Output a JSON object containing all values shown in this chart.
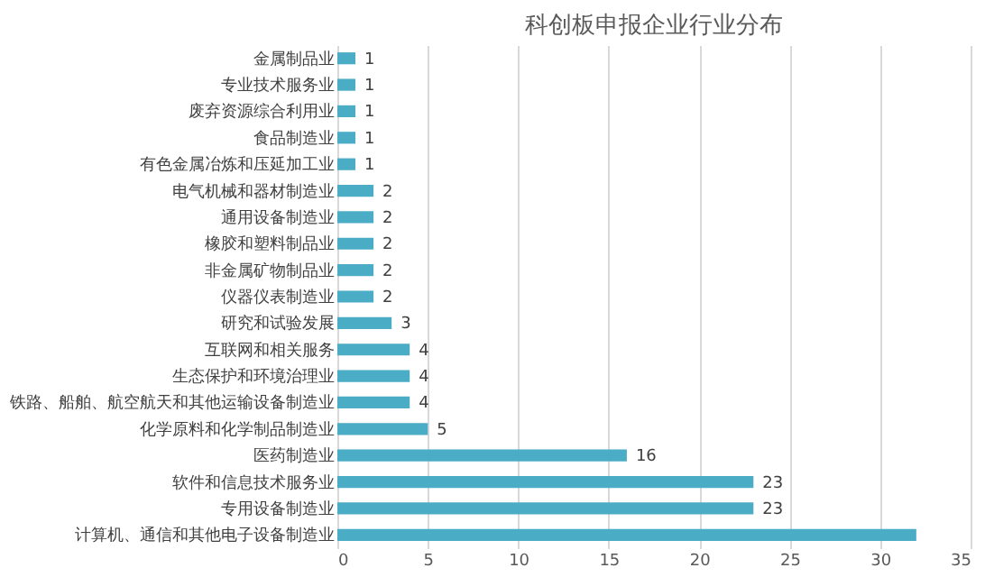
{
  "chart_data": {
    "type": "bar",
    "orientation": "horizontal",
    "title": "科创板申报企业行业分布",
    "categories": [
      "金属制品业",
      "专业技术服务业",
      "废弃资源综合利用业",
      "食品制造业",
      "有色金属冶炼和压延加工业",
      "电气机械和器材制造业",
      "通用设备制造业",
      "橡胶和塑料制品业",
      "非金属矿物制品业",
      "仪器仪表制造业",
      "研究和试验发展",
      "互联网和相关服务",
      "生态保护和环境治理业",
      "铁路、船舶、航空航天和其他运输设备制造业",
      "化学原料和化学制品制造业",
      "医药制造业",
      "软件和信息技术服务业",
      "专用设备制造业",
      "计算机、通信和其他电子设备制造业"
    ],
    "values": [
      1,
      1,
      1,
      1,
      1,
      2,
      2,
      2,
      2,
      2,
      3,
      4,
      4,
      4,
      5,
      16,
      23,
      23,
      32
    ],
    "value_labels": [
      "1",
      "1",
      "1",
      "1",
      "1",
      "2",
      "2",
      "2",
      "2",
      "2",
      "3",
      "4",
      "4",
      "4",
      "5",
      "16",
      "23",
      "23",
      null
    ],
    "color": "#4bacc6",
    "xlim": [
      0,
      35
    ],
    "xticks": [
      0,
      5,
      10,
      15,
      20,
      25,
      30,
      35
    ],
    "grid": "x"
  }
}
